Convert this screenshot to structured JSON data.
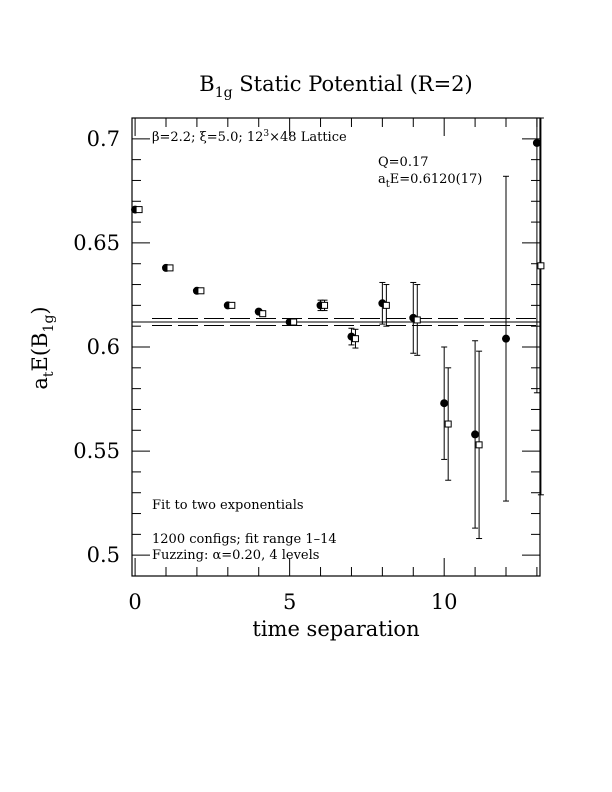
{
  "chart_data": {
    "type": "scatter",
    "title": {
      "main": "B",
      "sub": "1g",
      "rest": " Static Potential (R=2)"
    },
    "xlabel": "time separation",
    "ylabel": {
      "main": "a",
      "sub1": "t",
      "mid": "E(B",
      "sub2": "1g",
      "end": ")"
    },
    "xlim": [
      -0.1,
      13.1
    ],
    "ylim": [
      0.49,
      0.71
    ],
    "xticks": [
      0,
      5,
      10
    ],
    "xtick_labels": [
      "0",
      "5",
      "10"
    ],
    "yticks": [
      0.5,
      0.55,
      0.6,
      0.65,
      0.7
    ],
    "ytick_labels": [
      "0.5",
      "0.55",
      "0.6",
      "0.65",
      "0.7"
    ],
    "annotations": {
      "lattice": {
        "beta": "β=2.2; ",
        "xi": "ξ=5.0; ",
        "lattice_a": "12",
        "lattice_sup": "3",
        "lattice_b": "×48 Lattice"
      },
      "q": "Q=0.17",
      "energy": {
        "main": "a",
        "sub": "t",
        "rest": "E=0.6120(17)"
      },
      "fit": "Fit to two exponentials",
      "configs": "1200 configs; fit range 1–14",
      "fuzzing": "Fuzzing: α=0.20, 4 levels"
    },
    "fit": {
      "value": 0.612,
      "upper": 0.6137,
      "lower": 0.6103
    },
    "series": [
      {
        "marker": "filled-circle",
        "points": [
          {
            "x": 0,
            "y": 0.666,
            "err": 0.0008
          },
          {
            "x": 1,
            "y": 0.638,
            "err": 0.0008
          },
          {
            "x": 2,
            "y": 0.627,
            "err": 0.0008
          },
          {
            "x": 3,
            "y": 0.62,
            "err": 0.0009
          },
          {
            "x": 4,
            "y": 0.617,
            "err": 0.001
          },
          {
            "x": 5,
            "y": 0.612,
            "err": 0.0012
          },
          {
            "x": 6,
            "y": 0.62,
            "err": 0.0025
          },
          {
            "x": 7,
            "y": 0.605,
            "err": 0.004
          },
          {
            "x": 8,
            "y": 0.621,
            "err": 0.01
          },
          {
            "x": 9,
            "y": 0.614,
            "err": 0.017
          },
          {
            "x": 10,
            "y": 0.573,
            "err": 0.027
          },
          {
            "x": 11,
            "y": 0.558,
            "err": 0.045
          },
          {
            "x": 12,
            "y": 0.604,
            "err": 0.078
          },
          {
            "x": 13,
            "y": 0.698,
            "err": 0.12
          }
        ]
      },
      {
        "marker": "open-square",
        "points": [
          {
            "x": 0,
            "y": 0.666,
            "err": 0.0008
          },
          {
            "x": 1,
            "y": 0.638,
            "err": 0.0008
          },
          {
            "x": 2,
            "y": 0.627,
            "err": 0.0008
          },
          {
            "x": 3,
            "y": 0.62,
            "err": 0.0008
          },
          {
            "x": 4,
            "y": 0.616,
            "err": 0.001
          },
          {
            "x": 5,
            "y": 0.612,
            "err": 0.0012
          },
          {
            "x": 6,
            "y": 0.62,
            "err": 0.0025
          },
          {
            "x": 7,
            "y": 0.604,
            "err": 0.0045
          },
          {
            "x": 8,
            "y": 0.62,
            "err": 0.01
          },
          {
            "x": 9,
            "y": 0.613,
            "err": 0.017
          },
          {
            "x": 10,
            "y": 0.563,
            "err": 0.027
          },
          {
            "x": 11,
            "y": 0.553,
            "err": 0.045
          },
          {
            "x": 13,
            "y": 0.639,
            "err": 0.11
          }
        ]
      }
    ]
  }
}
